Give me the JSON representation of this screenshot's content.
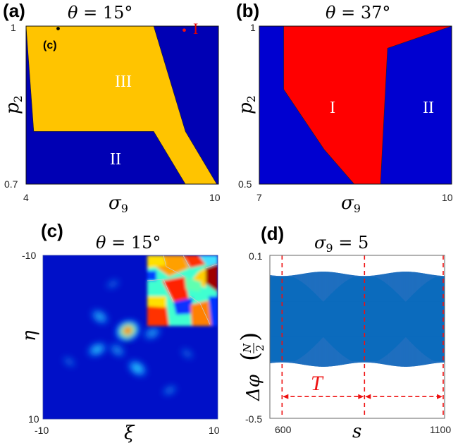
{
  "chart_data": [
    {
      "panel": "(a)",
      "type": "area",
      "title": "θ = 15°",
      "xlabel": "σ9",
      "ylabel": "p2",
      "xlim": [
        4,
        10
      ],
      "ylim": [
        0.7,
        1
      ],
      "x_ticks": [
        "4",
        "10"
      ],
      "y_ticks": [
        "0.7",
        "1"
      ],
      "background_color": "#0000b4",
      "regions": [
        {
          "name": "III",
          "color": "#ffc400",
          "polygon": [
            [
              4,
              1
            ],
            [
              7.98,
              1
            ],
            [
              8.97,
              0.8
            ],
            [
              9.95,
              0.7
            ],
            [
              8.97,
              0.7
            ],
            [
              7.98,
              0.8
            ],
            [
              4.24,
              0.8
            ]
          ]
        },
        {
          "name": "II",
          "color": "#0000b4",
          "polygon": []
        },
        {
          "name": "I",
          "color": "#0000b4",
          "polygon": []
        }
      ],
      "region_labels": [
        {
          "text": "III",
          "x": 6.4,
          "y": 0.91
        },
        {
          "text": "II",
          "x": 6.4,
          "y": 0.76
        },
        {
          "text": "I",
          "x": 9.3,
          "y": 0.995
        }
      ],
      "points": [
        {
          "label": "(c)",
          "x": 5.0,
          "y": 0.998,
          "color": "#000000"
        },
        {
          "label": "",
          "x": 9.0,
          "y": 0.995,
          "color": "#ee1111"
        }
      ]
    },
    {
      "panel": "(b)",
      "type": "area",
      "title": "θ = 37°",
      "xlabel": "σ9",
      "ylabel": "p2",
      "xlim": [
        7,
        10
      ],
      "ylim": [
        0.5,
        1
      ],
      "x_ticks": [
        "7",
        "10"
      ],
      "y_ticks": [
        "0.5",
        "1"
      ],
      "background_color": "#0000d0",
      "regions": [
        {
          "name": "I",
          "color": "#ff0000",
          "polygon": [
            [
              7.38,
              1
            ],
            [
              10,
              1
            ],
            [
              9.0,
              0.93
            ],
            [
              8.89,
              0.5
            ],
            [
              8.48,
              0.5
            ],
            [
              8.01,
              0.61
            ],
            [
              7.38,
              0.8
            ]
          ]
        }
      ],
      "region_labels": [
        {
          "text": "I",
          "x": 8.3,
          "y": 0.75
        },
        {
          "text": "II",
          "x": 9.5,
          "y": 0.75
        }
      ]
    },
    {
      "panel": "(c)",
      "type": "heatmap",
      "title": "θ = 15°",
      "xlabel": "ξ",
      "ylabel": "η",
      "xlim": [
        -10,
        10
      ],
      "ylim": [
        -10,
        10
      ],
      "x_ticks": [
        "-10",
        "10"
      ],
      "y_ticks": [
        "-10",
        "10"
      ],
      "colormap": "jet",
      "blobs": [
        {
          "x": -0.3,
          "y": -0.8,
          "intensity": 1.0
        },
        {
          "x": -3.5,
          "y": -2.5,
          "intensity": 0.45
        },
        {
          "x": -3.8,
          "y": 1.5,
          "intensity": 0.5
        },
        {
          "x": 0.8,
          "y": 3.8,
          "intensity": 0.55
        },
        {
          "x": 2.5,
          "y": -0.5,
          "intensity": 0.4
        },
        {
          "x": -1.5,
          "y": 1.6,
          "intensity": 0.35
        },
        {
          "x": 4.5,
          "y": 6.5,
          "intensity": 0.25
        },
        {
          "x": -7.0,
          "y": 3.0,
          "intensity": 0.2
        },
        {
          "x": -2.0,
          "y": -6.5,
          "intensity": 0.2
        },
        {
          "x": 6.5,
          "y": 2.0,
          "intensity": 0.2
        }
      ],
      "inset": "phase map"
    },
    {
      "panel": "(d)",
      "type": "line",
      "title": "σ9 = 5",
      "xlabel": "s",
      "ylabel": "Δφ(N/2)",
      "xlim": [
        570,
        1100
      ],
      "ylim": [
        -0.5,
        0.1
      ],
      "x_ticks": [
        "600",
        "1100"
      ],
      "y_ticks": [
        "-0.5",
        "0.1"
      ],
      "series_color": "#1f6fbf",
      "envelope": {
        "center": -0.136,
        "outer_max": 0.04,
        "outer_min": -0.31,
        "inner_amp": 0.105,
        "period": 250
      },
      "markers": {
        "dashed_lines_s": [
          607,
          857,
          1107
        ],
        "color": "#ee1111"
      },
      "annotation": "T"
    }
  ],
  "labels": {
    "a": {
      "letter": "(a)",
      "title_var": "θ",
      "title_rest": " = 15°",
      "x_min": "4",
      "x_max": "10",
      "y_min": "0.7",
      "y_max": "1",
      "xlabel": "σ",
      "xlabel_sub": "9",
      "ylabel": "p",
      "ylabel_sub": "2",
      "r1": "III",
      "r2": "II",
      "r3": "I",
      "marker": "(c)"
    },
    "b": {
      "letter": "(b)",
      "title_var": "θ",
      "title_rest": " = 37°",
      "x_min": "7",
      "x_max": "10",
      "y_min": "0.5",
      "y_max": "1",
      "xlabel": "σ",
      "xlabel_sub": "9",
      "ylabel": "p",
      "ylabel_sub": "2",
      "r1": "I",
      "r2": "II"
    },
    "c": {
      "letter": "(c)",
      "title_var": "θ",
      "title_rest": " = 15°",
      "x_min": "-10",
      "x_max": "10",
      "y_min": "-10",
      "y_max": "10",
      "xlabel": "ξ",
      "ylabel": "η"
    },
    "d": {
      "letter": "(d)",
      "title_var": "σ",
      "title_sub": "9",
      "title_rest": " = 5",
      "x_min": "600",
      "x_max": "1100",
      "y_min": "-0.5",
      "y_max": "0.1",
      "xlabel": "s",
      "ylabel_a": "Δφ",
      "ylabel_num": "N",
      "ylabel_den": "2",
      "T": "T"
    }
  }
}
